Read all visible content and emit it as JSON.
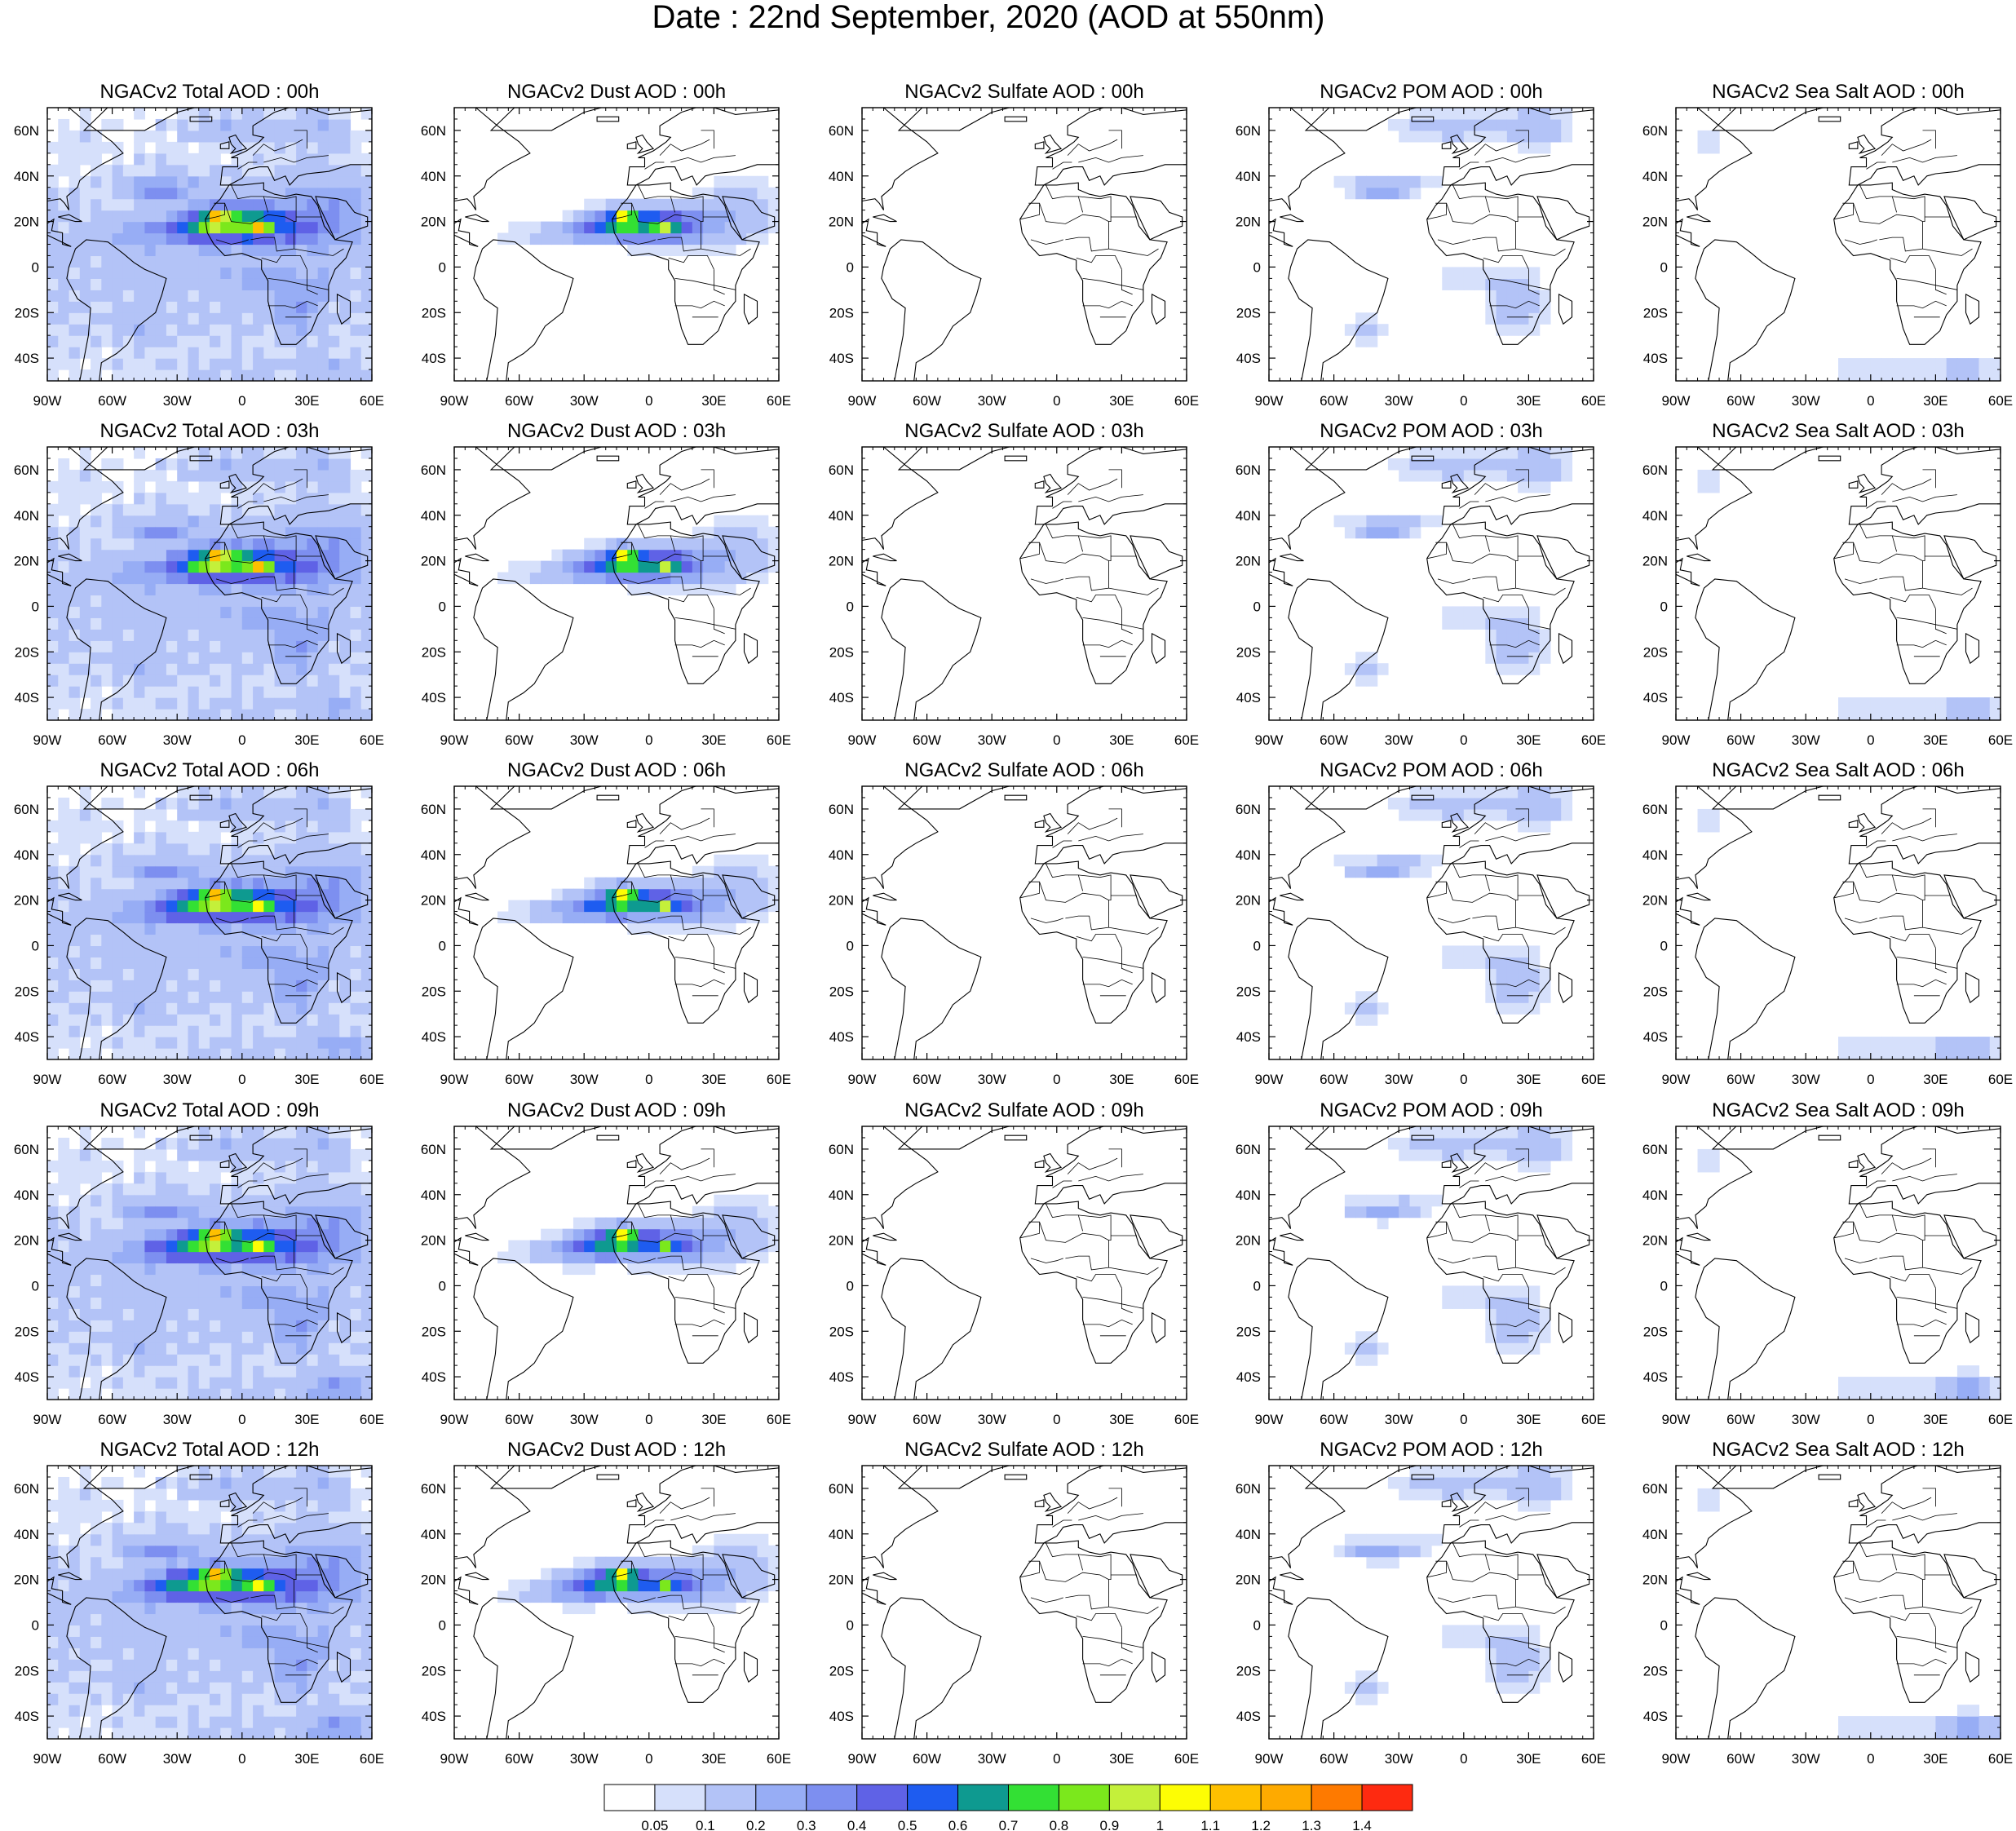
{
  "title": "Date : 22nd  September, 2020 (AOD at 550nm)",
  "panel_titles": [
    [
      "NGACv2 Total AOD : 00h",
      "NGACv2 Dust AOD : 00h",
      "NGACv2 Sulfate AOD : 00h",
      "NGACv2 POM AOD : 00h",
      "NGACv2 Sea Salt AOD : 00h"
    ],
    [
      "NGACv2 Total AOD : 03h",
      "NGACv2 Dust AOD : 03h",
      "NGACv2 Sulfate AOD : 03h",
      "NGACv2 POM AOD : 03h",
      "NGACv2 Sea Salt AOD : 03h"
    ],
    [
      "NGACv2 Total AOD : 06h",
      "NGACv2 Dust AOD : 06h",
      "NGACv2 Sulfate AOD : 06h",
      "NGACv2 POM AOD : 06h",
      "NGACv2 Sea Salt AOD : 06h"
    ],
    [
      "NGACv2 Total AOD : 09h",
      "NGACv2 Dust AOD : 09h",
      "NGACv2 Sulfate AOD : 09h",
      "NGACv2 POM AOD : 09h",
      "NGACv2 Sea Salt  AOD : 09h"
    ],
    [
      "NGACv2 Total AOD  : 12h",
      "NGACv2 Dust AOD : 12h",
      "NGACv2 Sulfate AOD : 12h",
      "NGACv2 POM  AOD : 12h",
      "NGACv2 Sea Salt  AOD : 12h"
    ]
  ],
  "lat_ticks": [
    "60N",
    "40N",
    "20N",
    "0",
    "20S",
    "40S"
  ],
  "lon_ticks": [
    "90W",
    "60W",
    "30W",
    "0",
    "30E",
    "60E"
  ],
  "colorbar": {
    "labels": [
      "0.05",
      "0.1",
      "0.2",
      "0.3",
      "0.4",
      "0.5",
      "0.6",
      "0.7",
      "0.8",
      "0.9",
      "1",
      "1.1",
      "1.2",
      "1.3",
      "1.4"
    ],
    "colors": [
      "#ffffff",
      "#d6e0fb",
      "#b3c3f7",
      "#97adf5",
      "#7d8ff0",
      "#5f62e6",
      "#1e5cf0",
      "#0e9a90",
      "#33e034",
      "#7be81c",
      "#c4f03a",
      "#fdfd04",
      "#fec000",
      "#feaa00",
      "#fe7a00",
      "#fe2a10"
    ]
  },
  "fields": {
    "Total": {
      "base": 0.12,
      "dust": 1.0,
      "pom": 1.0,
      "salt": 1.0
    },
    "Dust": {
      "base": 0.0,
      "dust": 1.0,
      "pom": 0.0,
      "salt": 0.0
    },
    "Sulfate": {
      "base": 0.0,
      "dust": 0.0,
      "pom": 0.0,
      "salt": 0.0
    },
    "POM": {
      "base": 0.0,
      "dust": 0.0,
      "pom": 1.0,
      "salt": 0.0
    },
    "Sea Salt": {
      "base": 0.0,
      "dust": 0.0,
      "pom": 0.0,
      "salt": 1.0
    }
  }
}
